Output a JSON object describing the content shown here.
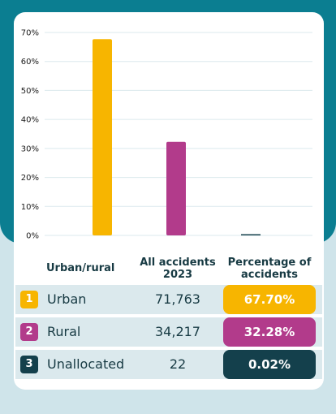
{
  "colors": {
    "urban": "#f7b500",
    "rural": "#b23b8b",
    "unallocated": "#14404c",
    "gridline": "#dbe9ed",
    "frame_teal": "#0b7e91"
  },
  "table": {
    "headers": {
      "category": "Urban/rural",
      "all_accidents_line1": "All accidents",
      "all_accidents_line2": "2023",
      "percentage_line1": "Percentage of",
      "percentage_line2": "accidents"
    },
    "rows": [
      {
        "rank": "1",
        "label": "Urban",
        "count": "71,763",
        "percent": "67.70%"
      },
      {
        "rank": "2",
        "label": "Rural",
        "count": "34,217",
        "percent": "32.28%"
      },
      {
        "rank": "3",
        "label": "Unallocated",
        "count": "22",
        "percent": "0.02%"
      }
    ]
  },
  "chart_data": {
    "type": "bar",
    "categories": [
      "Urban",
      "Rural",
      "Unallocated"
    ],
    "values": [
      67.7,
      32.28,
      0.02
    ],
    "ylim": [
      0,
      70
    ],
    "ytick_labels": [
      "0%",
      "10%",
      "20%",
      "30%",
      "40%",
      "50%",
      "60%",
      "70%"
    ],
    "grid": true,
    "legend": "none"
  }
}
